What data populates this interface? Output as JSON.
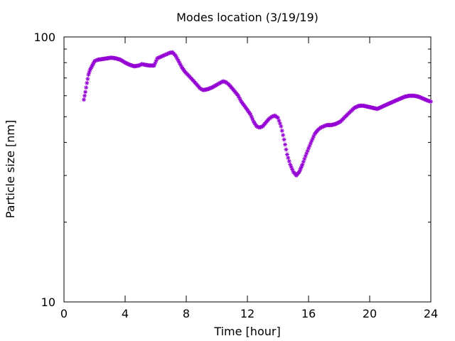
{
  "chart_data": {
    "type": "scatter",
    "title": "Modes location (3/19/19)",
    "xlabel": "Time [hour]",
    "ylabel": "Particle size [nm]",
    "xlim": [
      0,
      24
    ],
    "ylim": [
      10,
      100
    ],
    "yscale": "log",
    "grid": false,
    "legend": "none",
    "x_ticks": [
      0,
      4,
      8,
      12,
      16,
      20,
      24
    ],
    "x_tick_labels": [
      "0",
      "4",
      "8",
      "12",
      "16",
      "20",
      "24"
    ],
    "y_major_ticks": [
      10,
      100
    ],
    "y_tick_labels": [
      "10",
      "100"
    ],
    "marker": "asterisk",
    "color": "#9400d3",
    "series": [
      {
        "x": [
          1.3,
          1.4,
          1.5,
          1.6,
          1.7,
          1.8,
          1.9,
          2.0,
          2.2,
          2.5,
          2.8,
          3.1,
          3.4,
          3.7,
          4.0,
          4.3,
          4.6,
          4.9,
          5.1,
          5.3,
          5.6,
          5.9,
          6.1,
          6.3,
          6.5,
          6.7,
          6.9,
          7.1,
          7.3,
          7.5,
          7.7,
          7.9,
          8.1,
          8.3,
          8.5,
          8.7,
          8.9,
          9.1,
          9.4,
          9.7,
          10.0,
          10.2,
          10.4,
          10.6,
          10.8,
          11.0,
          11.2,
          11.4,
          11.6,
          11.8,
          12.0,
          12.2,
          12.4,
          12.6,
          12.8,
          13.0,
          13.2,
          13.4,
          13.6,
          13.8,
          14.0,
          14.2,
          14.4,
          14.6,
          14.8,
          15.0,
          15.1,
          15.2,
          15.3,
          15.4,
          15.5,
          15.6,
          15.8,
          16.0,
          16.2,
          16.4,
          16.6,
          16.8,
          17.0,
          17.2,
          17.5,
          17.8,
          18.1,
          18.4,
          18.7,
          19.0,
          19.3,
          19.6,
          19.9,
          20.2,
          20.5,
          20.8,
          21.1,
          21.4,
          21.7,
          22.0,
          22.3,
          22.6,
          22.9,
          23.2,
          23.5,
          23.8,
          24.0
        ],
        "y": [
          58,
          62,
          67,
          72,
          75,
          77,
          79,
          81,
          82,
          82.5,
          83,
          83.5,
          83,
          82,
          80,
          78.5,
          77.5,
          78,
          79,
          78.5,
          78,
          78,
          83,
          84,
          85,
          86,
          87,
          87.5,
          85,
          81,
          77,
          74,
          72,
          70,
          68,
          66,
          64,
          63,
          63.5,
          64.5,
          66,
          67,
          68,
          67.5,
          66,
          64,
          62,
          60,
          57,
          55,
          53,
          51,
          48,
          46,
          45.5,
          46,
          47.5,
          49,
          50,
          50.5,
          49.5,
          46,
          41,
          36,
          33,
          31,
          30.5,
          30,
          30.5,
          31,
          32,
          33,
          35.5,
          38,
          40.5,
          43,
          44.5,
          45.5,
          46,
          46.5,
          46.5,
          47,
          48,
          50,
          52,
          54,
          55,
          55,
          54.5,
          54,
          53.5,
          54.5,
          55.5,
          56.5,
          57.5,
          58.5,
          59.5,
          60,
          60,
          59.5,
          58.5,
          57.5,
          57
        ]
      }
    ]
  }
}
